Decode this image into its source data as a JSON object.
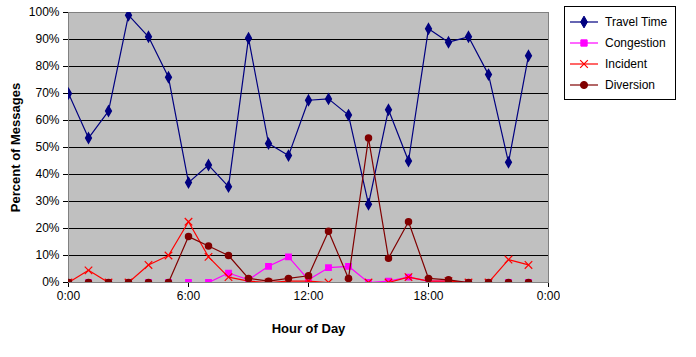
{
  "chart_data": {
    "type": "line",
    "xlabel": "Hour of Day",
    "ylabel": "Percent of Messages",
    "x": [
      0,
      1,
      2,
      3,
      4,
      5,
      6,
      7,
      8,
      9,
      10,
      11,
      12,
      13,
      14,
      15,
      16,
      17,
      18,
      19,
      20,
      21,
      22,
      23
    ],
    "xlim": [
      0,
      24
    ],
    "xticks": [
      {
        "value": 0,
        "label": "0:00"
      },
      {
        "value": 6,
        "label": "6:00"
      },
      {
        "value": 12,
        "label": "12:00"
      },
      {
        "value": 18,
        "label": "18:00"
      },
      {
        "value": 24,
        "label": "0:00"
      }
    ],
    "ylim": [
      0,
      100
    ],
    "yticks": [
      {
        "value": 0,
        "label": "0%"
      },
      {
        "value": 10,
        "label": "10%"
      },
      {
        "value": 20,
        "label": "20%"
      },
      {
        "value": 30,
        "label": "30%"
      },
      {
        "value": 40,
        "label": "40%"
      },
      {
        "value": 50,
        "label": "50%"
      },
      {
        "value": 60,
        "label": "60%"
      },
      {
        "value": 70,
        "label": "70%"
      },
      {
        "value": 80,
        "label": "80%"
      },
      {
        "value": 90,
        "label": "90%"
      },
      {
        "value": 100,
        "label": "100%"
      }
    ],
    "grid": true,
    "legend": "right",
    "series": [
      {
        "name": "Travel Time",
        "color": "#000080",
        "marker": "diamond",
        "values": [
          70,
          53.5,
          63.5,
          99,
          91,
          76,
          37,
          43.5,
          35.5,
          90.5,
          51.5,
          47,
          67.5,
          68,
          62,
          29,
          64,
          45,
          94,
          89,
          91,
          77,
          44.5,
          84
        ]
      },
      {
        "name": "Congestion",
        "color": "#FF00FF",
        "marker": "square",
        "values": [
          0,
          0,
          0,
          0,
          0,
          0,
          0,
          0,
          3.5,
          1,
          6,
          9.5,
          1,
          5.5,
          6,
          0,
          0.5,
          2,
          0.5,
          0.5,
          0,
          0,
          0,
          0
        ]
      },
      {
        "name": "Incident",
        "color": "#FF0000",
        "marker": "x",
        "values": [
          0,
          4.5,
          0,
          0,
          6.5,
          10,
          22.5,
          9.5,
          2,
          0.5,
          0,
          0.5,
          0.5,
          0,
          0,
          0,
          0,
          2,
          0.5,
          0.5,
          0,
          0,
          8.5,
          6.5
        ]
      },
      {
        "name": "Diversion",
        "color": "#800000",
        "marker": "circle",
        "values": [
          0,
          0,
          0,
          0,
          0,
          0,
          17,
          13.5,
          10,
          1.5,
          0.5,
          1.5,
          2.5,
          19,
          1.5,
          53.5,
          9,
          22.5,
          1.5,
          1,
          0,
          0,
          0,
          0
        ]
      }
    ]
  }
}
